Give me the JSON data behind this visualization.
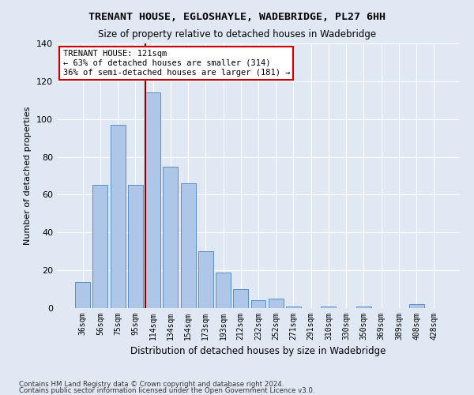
{
  "title": "TRENANT HOUSE, EGLOSHAYLE, WADEBRIDGE, PL27 6HH",
  "subtitle": "Size of property relative to detached houses in Wadebridge",
  "xlabel": "Distribution of detached houses by size in Wadebridge",
  "ylabel": "Number of detached properties",
  "footnote1": "Contains HM Land Registry data © Crown copyright and database right 2024.",
  "footnote2": "Contains public sector information licensed under the Open Government Licence v3.0.",
  "categories": [
    "36sqm",
    "56sqm",
    "75sqm",
    "95sqm",
    "114sqm",
    "134sqm",
    "154sqm",
    "173sqm",
    "193sqm",
    "212sqm",
    "232sqm",
    "252sqm",
    "271sqm",
    "291sqm",
    "310sqm",
    "330sqm",
    "350sqm",
    "369sqm",
    "389sqm",
    "408sqm",
    "428sqm"
  ],
  "values": [
    14,
    65,
    97,
    65,
    114,
    75,
    66,
    30,
    19,
    10,
    4,
    5,
    1,
    0,
    1,
    0,
    1,
    0,
    0,
    2,
    0
  ],
  "bar_color": "#aec6e8",
  "bar_edge_color": "#5a8fc4",
  "bg_color": "#e0e8f4",
  "grid_color": "#ffffff",
  "vline_color": "#8b0000",
  "annotation_text": "TRENANT HOUSE: 121sqm\n← 63% of detached houses are smaller (314)\n36% of semi-detached houses are larger (181) →",
  "annotation_box_color": "#ffffff",
  "annotation_box_edge": "#cc0000",
  "ylim": [
    0,
    140
  ],
  "yticks": [
    0,
    20,
    40,
    60,
    80,
    100,
    120,
    140
  ]
}
